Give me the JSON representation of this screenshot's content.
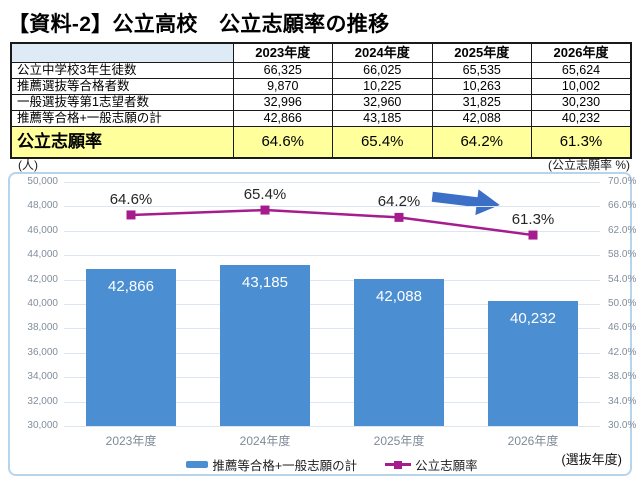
{
  "page": {
    "title": "【資料-2】公立高校　公立志願率の推移"
  },
  "table": {
    "corner_label": "",
    "col_headers": [
      "2023年度",
      "2024年度",
      "2025年度",
      "2026年度"
    ],
    "rows": [
      {
        "label": "公立中学校3年生徒数",
        "values": [
          "66,325",
          "66,025",
          "65,535",
          "65,624"
        ]
      },
      {
        "label": "推薦選抜等合格者数",
        "values": [
          "9,870",
          "10,225",
          "10,263",
          "10,002"
        ]
      },
      {
        "label": "一般選抜等第1志望者数",
        "values": [
          "32,996",
          "32,960",
          "31,825",
          "30,230"
        ]
      },
      {
        "label": "推薦等合格+一般志願の計",
        "values": [
          "42,866",
          "43,185",
          "42,088",
          "40,232"
        ]
      }
    ],
    "highlight_row": {
      "label": "公立志願率",
      "values": [
        "64.6%",
        "65.4%",
        "64.2%",
        "61.3%"
      ]
    },
    "highlight_color": "#FFFF9C",
    "corner_color": "#DEEAF6"
  },
  "chart": {
    "left_axis_title": "(人)",
    "right_axis_title": "(公立志願率 %)",
    "x_axis_note": "(選抜年度)",
    "legend": [
      {
        "label": "推薦等合格+一般志願の計",
        "type": "bar",
        "color": "#4B8FD2"
      },
      {
        "label": "公立志願率",
        "type": "line",
        "color": "#A61C8E"
      }
    ]
  },
  "chart_data": {
    "type": "bar+line",
    "categories": [
      "2023年度",
      "2024年度",
      "2025年度",
      "2026年度"
    ],
    "series": [
      {
        "name": "推薦等合格+一般志願の計",
        "type": "bar",
        "axis": "left",
        "values": [
          42866,
          43185,
          42088,
          40232
        ],
        "labels": [
          "42,866",
          "43,185",
          "42,088",
          "40,232"
        ],
        "color": "#4B8FD2"
      },
      {
        "name": "公立志願率",
        "type": "line",
        "axis": "right",
        "values": [
          64.6,
          65.4,
          64.2,
          61.3
        ],
        "labels": [
          "64.6%",
          "65.4%",
          "64.2%",
          "61.3%"
        ],
        "color": "#A61C8E"
      }
    ],
    "left_axis": {
      "min": 30000,
      "max": 50000,
      "step": 2000,
      "ticks": [
        "50,000",
        "48,000",
        "46,000",
        "44,000",
        "42,000",
        "40,000",
        "38,000",
        "36,000",
        "34,000",
        "32,000",
        "30,000"
      ]
    },
    "right_axis": {
      "min": 30,
      "max": 70,
      "step": 4,
      "ticks": [
        "70.0%",
        "66.0%",
        "62.0%",
        "58.0%",
        "54.0%",
        "50.0%",
        "46.0%",
        "42.0%",
        "38.0%",
        "34.0%",
        "30.0%"
      ]
    },
    "grid": true,
    "legend_position": "bottom",
    "annotations": [
      {
        "type": "block-arrow",
        "direction": "right",
        "color": "#3B70C6"
      }
    ]
  }
}
